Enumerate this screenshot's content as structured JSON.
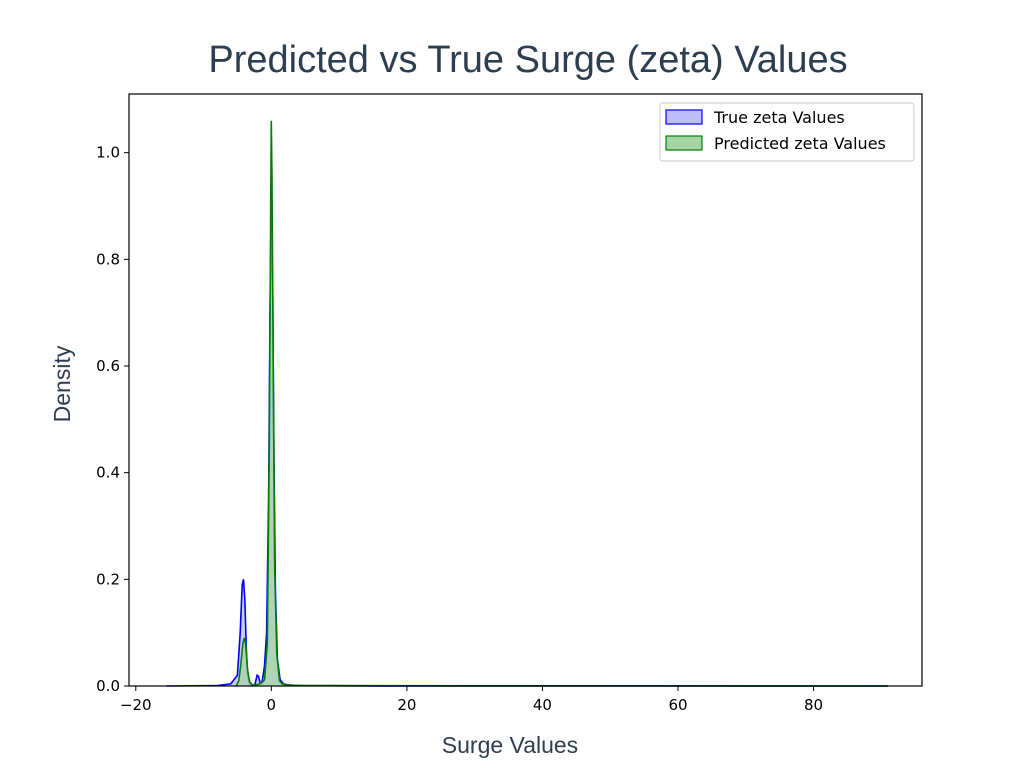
{
  "chart_data": {
    "type": "area",
    "title": "Predicted vs True Surge (zeta) Values",
    "xlabel": "Surge Values",
    "ylabel": "Density",
    "xlim": [
      -21,
      96
    ],
    "ylim": [
      0,
      1.11
    ],
    "xticks": [
      -20,
      0,
      20,
      40,
      60,
      80
    ],
    "yticks": [
      0.0,
      0.2,
      0.4,
      0.6,
      0.8,
      1.0
    ],
    "xtick_labels": [
      "−20",
      "0",
      "20",
      "40",
      "60",
      "80"
    ],
    "ytick_labels": [
      "0.0",
      "0.2",
      "0.4",
      "0.6",
      "0.8",
      "1.0"
    ],
    "grid": false,
    "legend_position": "top-right",
    "series": [
      {
        "name": "True zeta Values",
        "color": "#0000ff",
        "fill": "#bfbfff",
        "x": [
          -15.5,
          -8,
          -6,
          -5,
          -4.6,
          -4.3,
          -4.1,
          -3.9,
          -3.7,
          -3.5,
          -3.2,
          -2.8,
          -2.4,
          -2.1,
          -1.9,
          -1.6,
          -1.4,
          -1.2,
          -1.0,
          -0.7,
          -0.4,
          -0.2,
          0.0,
          0.2,
          0.4,
          0.6,
          0.9,
          1.3,
          1.8,
          2.5,
          4,
          8,
          15,
          91
        ],
        "y": [
          0,
          0.001,
          0.004,
          0.02,
          0.1,
          0.19,
          0.2,
          0.16,
          0.07,
          0.02,
          0.003,
          0.0,
          0.004,
          0.02,
          0.018,
          0.004,
          0.006,
          0.02,
          0.04,
          0.1,
          0.35,
          0.7,
          0.88,
          0.74,
          0.42,
          0.18,
          0.05,
          0.012,
          0.004,
          0.002,
          0.001,
          0.0005,
          0.0002,
          0
        ]
      },
      {
        "name": "Predicted zeta Values",
        "color": "#008000",
        "fill": "#a6d4a6",
        "x": [
          -5.2,
          -4.8,
          -4.5,
          -4.2,
          -4.0,
          -3.8,
          -3.5,
          -3.2,
          -2.8,
          -2.2,
          -1.8,
          -1.4,
          -1.0,
          -0.6,
          -0.3,
          -0.1,
          0.0,
          0.1,
          0.3,
          0.5,
          0.8,
          1.2,
          1.6,
          2.2,
          3,
          5,
          10,
          30,
          91
        ],
        "y": [
          0,
          0.01,
          0.04,
          0.08,
          0.09,
          0.08,
          0.03,
          0.008,
          0.002,
          0.002,
          0.004,
          0.006,
          0.012,
          0.08,
          0.45,
          0.9,
          1.06,
          0.95,
          0.55,
          0.22,
          0.06,
          0.01,
          0.004,
          0.002,
          0.0015,
          0.001,
          0.0007,
          0.0003,
          0
        ]
      }
    ]
  }
}
